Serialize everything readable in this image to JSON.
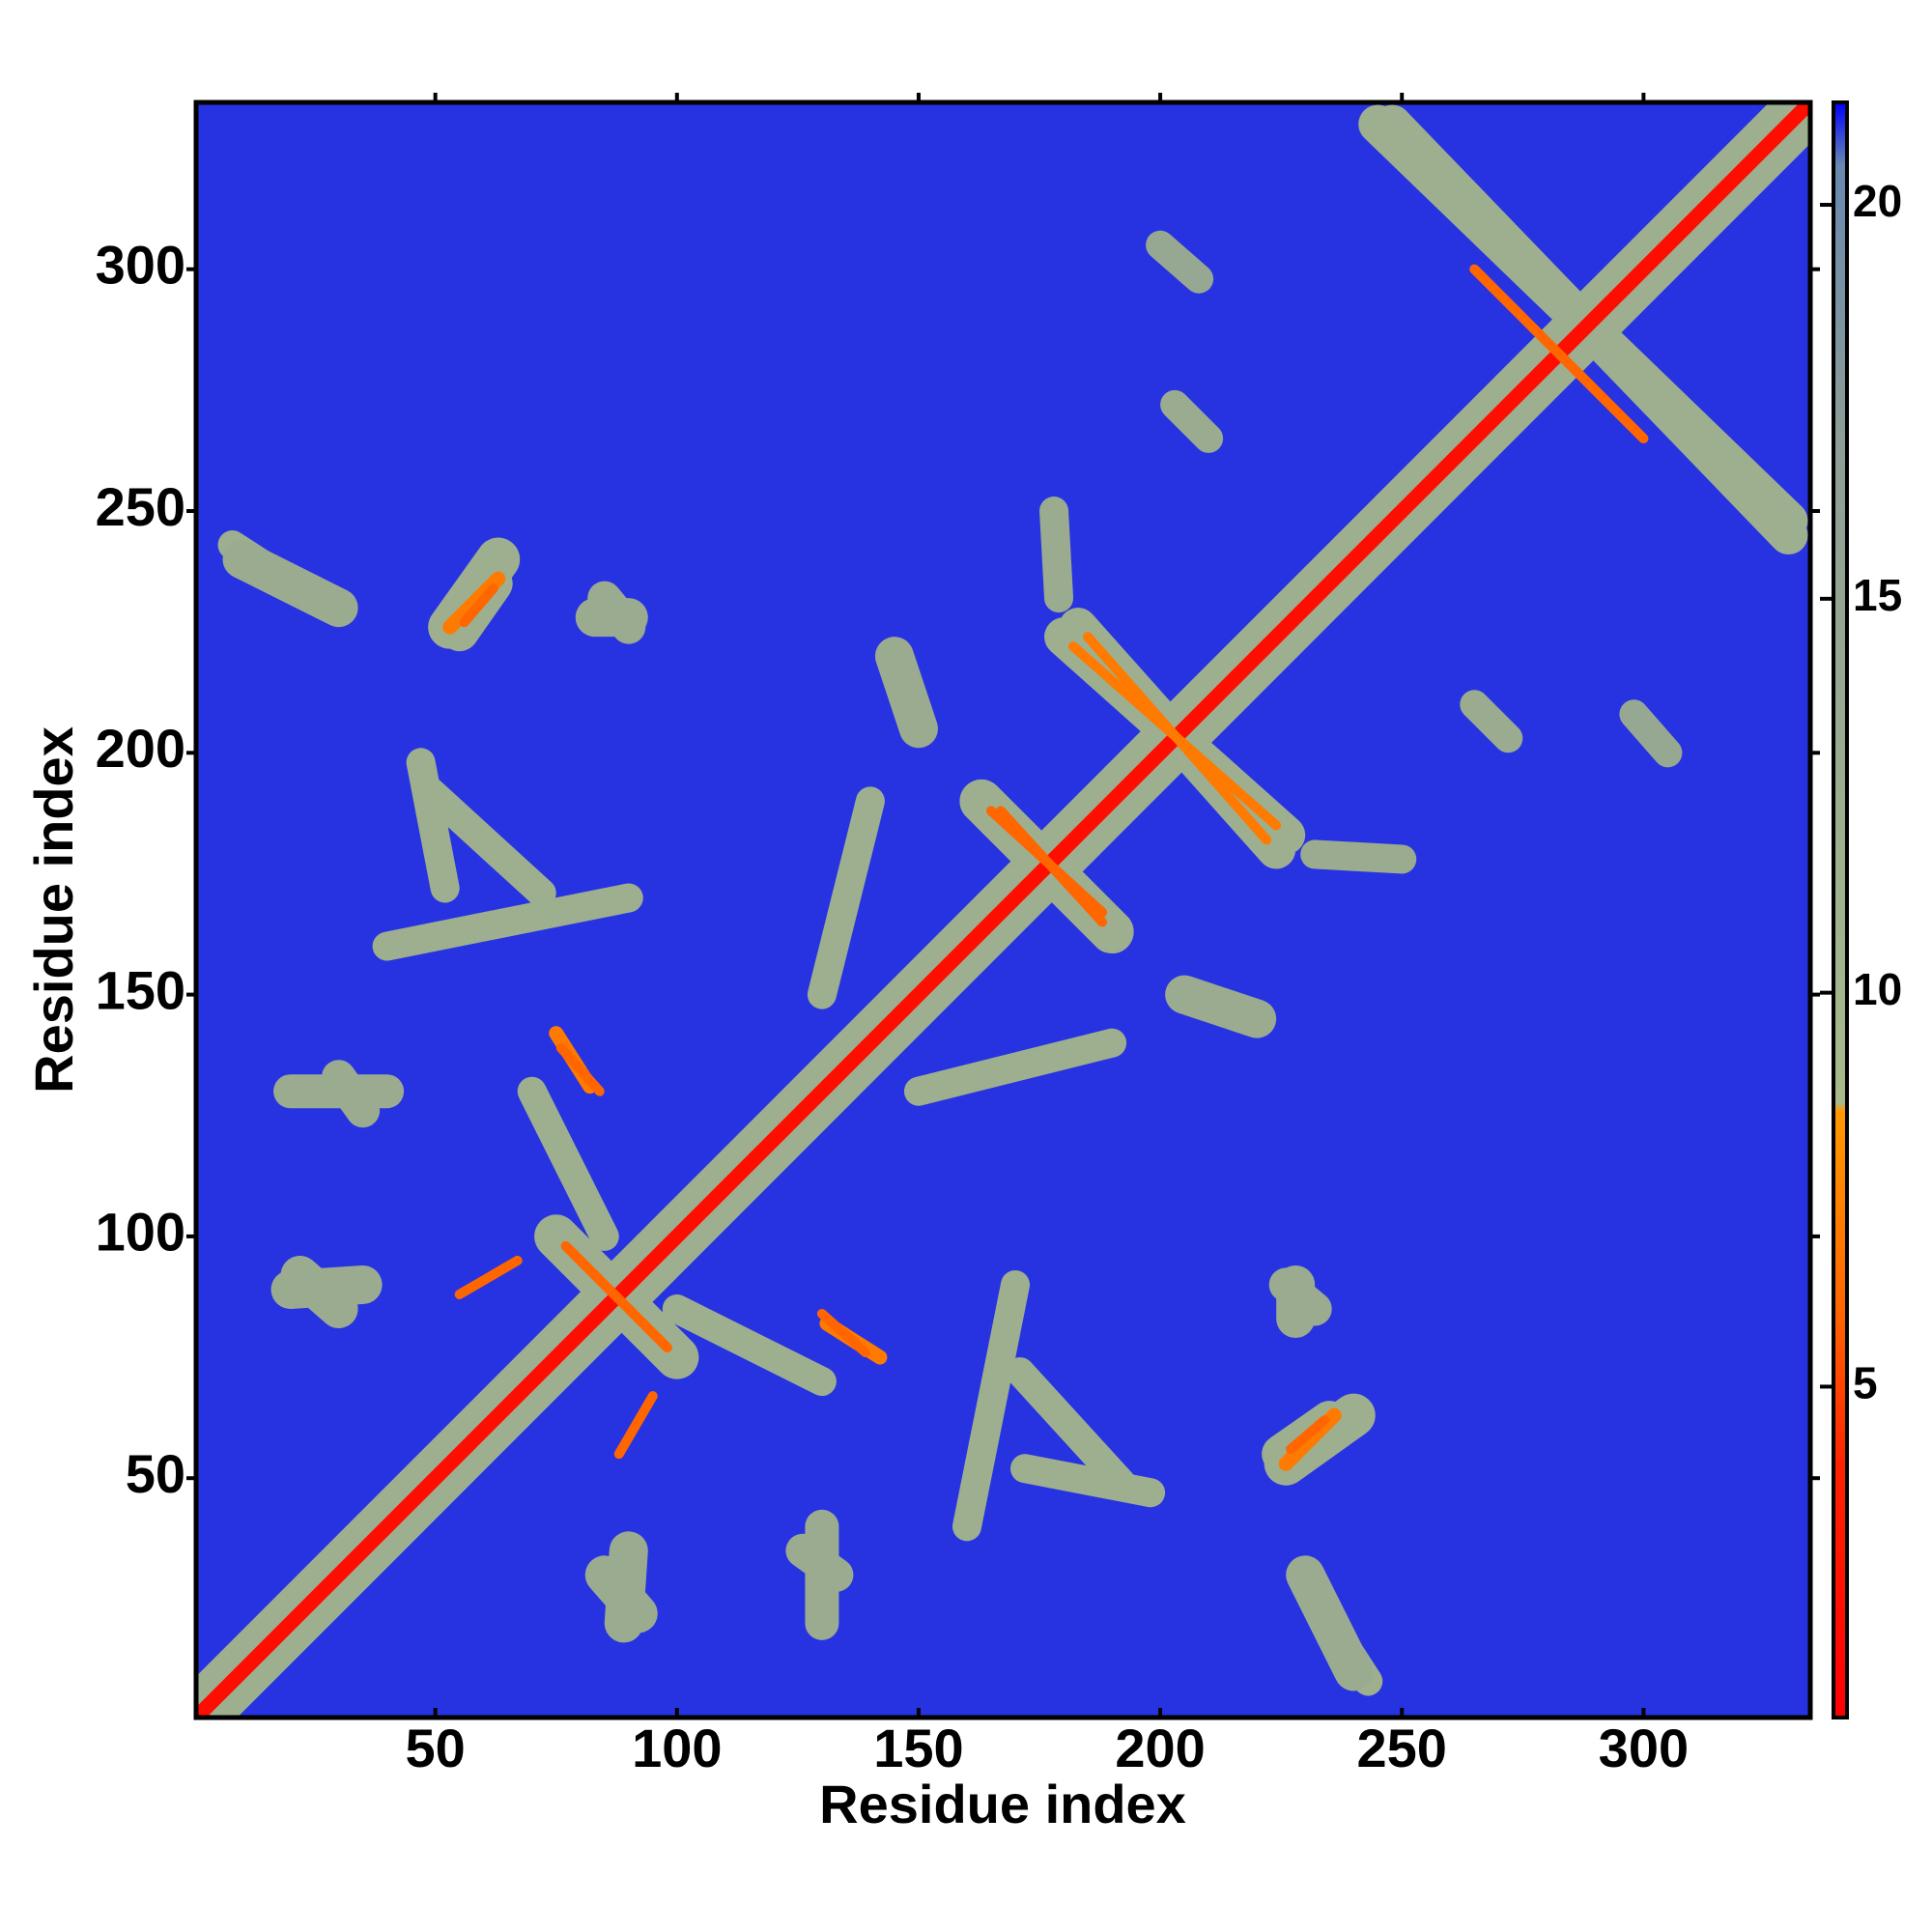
{
  "chart_data": {
    "type": "heatmap",
    "xlabel": "Residue index",
    "ylabel": "Residue index",
    "xlim": [
      0.5,
      334.5
    ],
    "ylim": [
      0.5,
      334.5
    ],
    "xticks": [
      50,
      100,
      150,
      200,
      250,
      300
    ],
    "yticks": [
      50,
      100,
      150,
      200,
      250,
      300
    ],
    "symmetric": true,
    "background_value": 21,
    "colorbar": {
      "clim": [
        0.8,
        21.3
      ],
      "ticks": [
        5,
        10,
        15,
        20
      ],
      "colorscale": [
        {
          "value": 0.8,
          "color": "#ff0000"
        },
        {
          "value": 4,
          "color": "#ff2200"
        },
        {
          "value": 6,
          "color": "#ff6600"
        },
        {
          "value": 8.5,
          "color": "#ff9900"
        },
        {
          "value": 8.6,
          "color": "#a8ba8a"
        },
        {
          "value": 17,
          "color": "#8d9e96"
        },
        {
          "value": 20.5,
          "color": "#6888b0"
        },
        {
          "value": 21.3,
          "color": "#0000ff"
        }
      ]
    },
    "contacts": [
      {
        "x": [
          1,
          334
        ],
        "y": [
          1,
          334
        ],
        "value": 12,
        "width": 12
      },
      {
        "x": [
          245,
          330
        ],
        "y": [
          330,
          248
        ],
        "value": 12,
        "width": 8
      },
      {
        "x": [
          200,
          208
        ],
        "y": [
          305,
          298
        ],
        "value": 14,
        "width": 6
      },
      {
        "x": [
          203,
          210
        ],
        "y": [
          272,
          265
        ],
        "value": 13,
        "width": 6
      },
      {
        "x": [
          232,
          243
        ],
        "y": [
          25,
          8
        ],
        "value": 12,
        "width": 6
      },
      {
        "x": [
          226,
          240
        ],
        "y": [
          53,
          63
        ],
        "value": 12,
        "width": 9
      },
      {
        "x": [
          226,
          232
        ],
        "y": [
          90,
          85
        ],
        "value": 13,
        "width": 7
      },
      {
        "x": [
          163,
          190
        ],
        "y": [
          190,
          163
        ],
        "value": 12,
        "width": 9
      },
      {
        "x": [
          183,
          224
        ],
        "y": [
          226,
          180
        ],
        "value": 12,
        "width": 8
      },
      {
        "x": [
          75,
          100
        ],
        "y": [
          100,
          75
        ],
        "value": 12,
        "width": 9
      },
      {
        "x": [
          150,
          190
        ],
        "y": [
          130,
          140
        ],
        "value": 12,
        "width": 6
      },
      {
        "x": [
          10,
          30
        ],
        "y": [
          240,
          230
        ],
        "value": 13,
        "width": 8
      },
      {
        "x": [
          55,
          62
        ],
        "y": [
          225,
          235
        ],
        "value": 12,
        "width": 8
      },
      {
        "x": [
          83,
          90
        ],
        "y": [
          228,
          228
        ],
        "value": 13,
        "width": 8
      },
      {
        "x": [
          20,
          35
        ],
        "y": [
          89,
          90
        ],
        "value": 13,
        "width": 8
      },
      {
        "x": [
          49,
          72
        ],
        "y": [
          192,
          171
        ],
        "value": 12,
        "width": 6
      },
      {
        "x": [
          20,
          40
        ],
        "y": [
          130,
          130
        ],
        "value": 13,
        "width": 7
      },
      {
        "x": [
          40,
          90
        ],
        "y": [
          160,
          170
        ],
        "value": 12,
        "width": 6
      },
      {
        "x": [
          100,
          130
        ],
        "y": [
          85,
          70
        ],
        "value": 12,
        "width": 6
      },
      {
        "x": [
          172,
          198
        ],
        "y": [
          52,
          47
        ],
        "value": 12,
        "width": 6
      },
      {
        "x": [
          205,
          220
        ],
        "y": [
          150,
          145
        ],
        "value": 13,
        "width": 8
      },
      {
        "x": [
          232,
          250
        ],
        "y": [
          179,
          178
        ],
        "value": 13,
        "width": 6
      },
      {
        "x": [
          85,
          92
        ],
        "y": [
          30,
          22
        ],
        "value": 13,
        "width": 8
      },
      {
        "x": [
          126,
          133
        ],
        "y": [
          35,
          30
        ],
        "value": 13,
        "width": 7
      },
      {
        "x": [
          1,
          334
        ],
        "y": [
          1,
          334
        ],
        "value": 2,
        "width": 3
      },
      {
        "x": [
          265,
          300
        ],
        "y": [
          300,
          265
        ],
        "value": 6,
        "width": 2
      },
      {
        "x": [
          226,
          236
        ],
        "y": [
          53,
          63
        ],
        "value": 7,
        "width": 3
      },
      {
        "x": [
          165,
          188
        ],
        "y": [
          188,
          167
        ],
        "value": 6,
        "width": 2
      },
      {
        "x": [
          185,
          222
        ],
        "y": [
          224,
          182
        ],
        "value": 7,
        "width": 2
      },
      {
        "x": [
          77,
          98
        ],
        "y": [
          98,
          77
        ],
        "value": 6,
        "width": 2
      },
      {
        "x": [
          131,
          142
        ],
        "y": [
          82,
          75
        ],
        "value": 7,
        "width": 3
      },
      {
        "x": [
          55,
          67
        ],
        "y": [
          88,
          95
        ],
        "value": 6,
        "width": 2
      },
      {
        "x": [
          76,
          84
        ],
        "y": [
          139,
          130
        ],
        "value": 6,
        "width": 2
      },
      {
        "x": [
          56,
          62
        ],
        "y": [
          227,
          234
        ],
        "value": 6,
        "width": 2
      }
    ]
  }
}
